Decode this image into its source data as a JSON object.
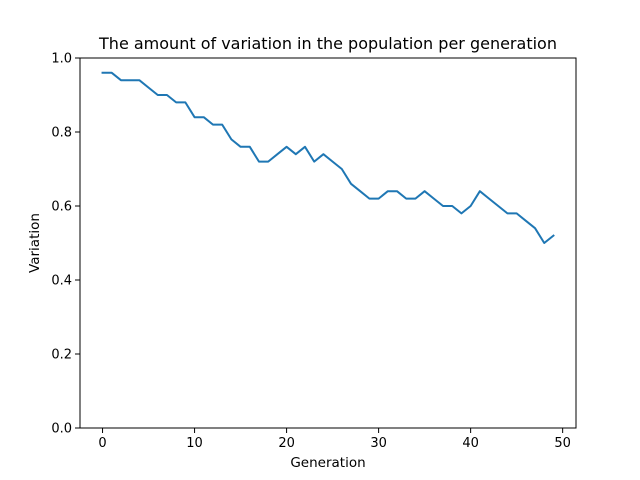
{
  "chart_data": {
    "type": "line",
    "title": "The amount of variation in the population per generation",
    "xlabel": "Generation",
    "ylabel": "Variation",
    "xlim": [
      -2.45,
      51.45
    ],
    "ylim": [
      0.0,
      1.0
    ],
    "xticks": [
      0,
      10,
      20,
      30,
      40,
      50
    ],
    "xtick_labels": [
      "0",
      "10",
      "20",
      "30",
      "40",
      "50"
    ],
    "yticks": [
      0.0,
      0.2,
      0.4,
      0.6,
      0.8,
      1.0
    ],
    "ytick_labels": [
      "0.0",
      "0.2",
      "0.4",
      "0.6",
      "0.8",
      "1.0"
    ],
    "grid": false,
    "series": [
      {
        "color": "#1f77b4",
        "x": [
          0,
          1,
          2,
          3,
          4,
          5,
          6,
          7,
          8,
          9,
          10,
          11,
          12,
          13,
          14,
          15,
          16,
          17,
          18,
          19,
          20,
          21,
          22,
          23,
          24,
          25,
          26,
          27,
          28,
          29,
          30,
          31,
          32,
          33,
          34,
          35,
          36,
          37,
          38,
          39,
          40,
          41,
          42,
          43,
          44,
          45,
          46,
          47,
          48,
          49
        ],
        "values": [
          0.96,
          0.96,
          0.94,
          0.94,
          0.94,
          0.92,
          0.9,
          0.9,
          0.88,
          0.88,
          0.84,
          0.84,
          0.82,
          0.82,
          0.78,
          0.76,
          0.76,
          0.72,
          0.72,
          0.74,
          0.76,
          0.74,
          0.76,
          0.72,
          0.74,
          0.72,
          0.7,
          0.66,
          0.64,
          0.62,
          0.62,
          0.64,
          0.64,
          0.62,
          0.62,
          0.64,
          0.62,
          0.6,
          0.6,
          0.58,
          0.6,
          0.64,
          0.62,
          0.6,
          0.58,
          0.58,
          0.56,
          0.54,
          0.5,
          0.52
        ]
      }
    ]
  }
}
